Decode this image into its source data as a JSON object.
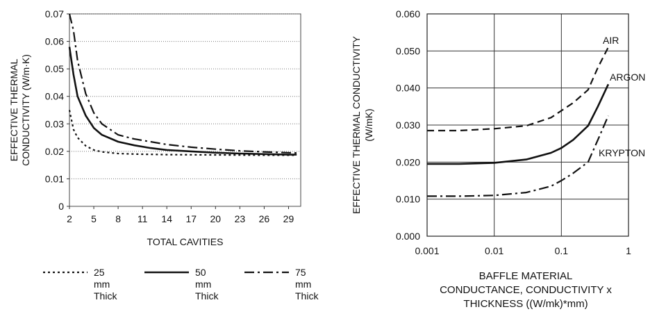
{
  "chart_data": [
    {
      "type": "line",
      "title": "",
      "xlabel": "TOTAL CAVITIES",
      "ylabel_lines": [
        "EFFECTIVE THERMAL",
        "CONDUCTIVITY (W/m·K)"
      ],
      "xlim": [
        2,
        30.5
      ],
      "ylim": [
        0,
        0.07
      ],
      "x_ticks": [
        "2",
        "5",
        "8",
        "11",
        "14",
        "17",
        "20",
        "23",
        "26",
        "29"
      ],
      "y_ticks": [
        "0",
        "0.01",
        "0.02",
        "0.03",
        "0.04",
        "0.05",
        "0.06",
        "0.07"
      ],
      "grid": "horizontal dotted",
      "legend_position": "bottom",
      "series": [
        {
          "name_lines": [
            "25",
            "mm",
            "Thick"
          ],
          "style": "dotted",
          "x": [
            2,
            2.5,
            3,
            4,
            5,
            6,
            8,
            10,
            14,
            20,
            26,
            30
          ],
          "y": [
            0.035,
            0.028,
            0.025,
            0.022,
            0.0205,
            0.0198,
            0.0192,
            0.019,
            0.0188,
            0.0187,
            0.0186,
            0.0186
          ]
        },
        {
          "name_lines": [
            "50",
            "mm",
            "Thick"
          ],
          "style": "solid",
          "x": [
            2,
            2.5,
            3,
            4,
            5,
            6,
            8,
            10,
            12,
            14,
            17,
            20,
            23,
            26,
            29,
            30
          ],
          "y": [
            0.058,
            0.048,
            0.04,
            0.033,
            0.0285,
            0.026,
            0.0235,
            0.0222,
            0.0212,
            0.0205,
            0.02,
            0.0195,
            0.0192,
            0.019,
            0.0188,
            0.0188
          ]
        },
        {
          "name_lines": [
            "75",
            "mm",
            "Thick"
          ],
          "style": "dashdot",
          "x": [
            2,
            2.5,
            3,
            4,
            5,
            6,
            8,
            10,
            12,
            14,
            17,
            20,
            23,
            26,
            29,
            30
          ],
          "y": [
            0.07,
            0.064,
            0.053,
            0.041,
            0.034,
            0.03,
            0.026,
            0.0245,
            0.0235,
            0.0225,
            0.0215,
            0.0208,
            0.0202,
            0.0198,
            0.0195,
            0.0194
          ]
        }
      ]
    },
    {
      "type": "line",
      "title": "",
      "xscale": "log",
      "xlim": [
        0.001,
        1
      ],
      "ylim": [
        0,
        0.06
      ],
      "ylabel_lines": [
        "EFFECTIVE THERMAL CONDUCTIVITY",
        "(W/mK)"
      ],
      "xlabel_lines": [
        "BAFFLE MATERIAL",
        "CONDUCTANCE, CONDUCTIVITY  x",
        "THICKNESS ((W/mk)*mm)"
      ],
      "x_ticks": [
        "0.001",
        "0.01",
        "0.1",
        "1"
      ],
      "y_ticks": [
        "0.000",
        "0.010",
        "0.020",
        "0.030",
        "0.040",
        "0.050",
        "0.060"
      ],
      "grid": "both solid",
      "series": [
        {
          "name": "AIR",
          "style": "dashed",
          "x": [
            0.001,
            0.003,
            0.01,
            0.03,
            0.07,
            0.15,
            0.25,
            0.35,
            0.5
          ],
          "y": [
            0.0285,
            0.0285,
            0.029,
            0.0298,
            0.032,
            0.036,
            0.0395,
            0.0455,
            0.051
          ]
        },
        {
          "name": "ARGON",
          "style": "solid",
          "x": [
            0.001,
            0.003,
            0.01,
            0.03,
            0.07,
            0.1,
            0.15,
            0.25,
            0.35,
            0.5
          ],
          "y": [
            0.0195,
            0.0195,
            0.0198,
            0.0207,
            0.0225,
            0.0238,
            0.026,
            0.0298,
            0.035,
            0.041
          ]
        },
        {
          "name": "KRYPTON",
          "style": "dashdot",
          "x": [
            0.001,
            0.003,
            0.01,
            0.03,
            0.07,
            0.1,
            0.15,
            0.25,
            0.35,
            0.5
          ],
          "y": [
            0.0108,
            0.0108,
            0.011,
            0.0118,
            0.0135,
            0.015,
            0.017,
            0.02,
            0.026,
            0.0325
          ]
        }
      ]
    }
  ]
}
